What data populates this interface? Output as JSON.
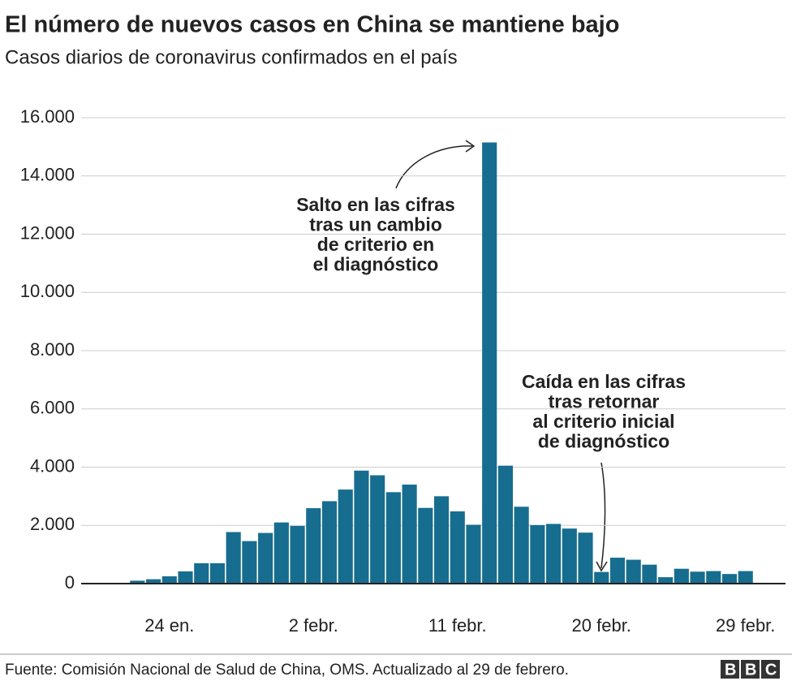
{
  "chart_data": {
    "type": "bar",
    "title": "El número de nuevos casos en China se mantiene bajo",
    "subtitle": "Casos diarios de coronavirus confirmados en el país",
    "categories": [
      null,
      null,
      "24 en.",
      null,
      null,
      null,
      null,
      null,
      null,
      null,
      null,
      "2 febr.",
      null,
      null,
      null,
      null,
      null,
      null,
      null,
      null,
      "11 febr.",
      null,
      null,
      null,
      null,
      null,
      null,
      null,
      null,
      "20 febr.",
      null,
      null,
      null,
      null,
      null,
      null,
      null,
      null,
      "29 febr."
    ],
    "values": [
      100,
      150,
      250,
      420,
      700,
      700,
      1770,
      1460,
      1740,
      2100,
      1980,
      2590,
      2830,
      3230,
      3880,
      3720,
      3140,
      3400,
      2600,
      3000,
      2480,
      2020,
      15150,
      4050,
      2640,
      2010,
      2050,
      1890,
      1750,
      400,
      890,
      820,
      650,
      220,
      510,
      410,
      430,
      330,
      430
    ],
    "color": "#176d8f",
    "ylim": [
      0,
      16000
    ],
    "yticks": [
      0,
      {
        "value": 2000,
        "label": "2.000"
      },
      {
        "value": 4000,
        "label": "4.000"
      },
      {
        "value": 6000,
        "label": "6.000"
      },
      {
        "value": 8000,
        "label": "8.000"
      },
      {
        "value": 10000,
        "label": "10.000"
      },
      {
        "value": 12000,
        "label": "12.000"
      },
      {
        "value": 14000,
        "label": "14.000"
      },
      {
        "value": 16000,
        "label": "16.000"
      }
    ],
    "grid": true,
    "annotations": [
      {
        "lines": [
          "Salto en las cifras",
          "tras un cambio",
          "de criterio en",
          "el diagnóstico"
        ]
      },
      {
        "lines": [
          "Caída en las cifras",
          "tras retornar",
          "al criterio inicial",
          "de diagnóstico"
        ]
      }
    ],
    "source": "Fuente: Comisión Nacional de Salud de China, OMS. Actualizado al 29 de febrero.",
    "logo": "BBC"
  }
}
